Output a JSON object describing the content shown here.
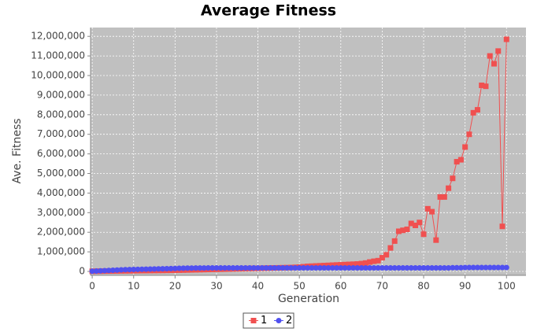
{
  "chart_data": {
    "type": "line",
    "title": "Average Fitness",
    "x_label": "Generation",
    "y_label": "Ave. Fitness",
    "x": [
      0,
      1,
      2,
      3,
      4,
      5,
      6,
      7,
      8,
      9,
      10,
      11,
      12,
      13,
      14,
      15,
      16,
      17,
      18,
      19,
      20,
      21,
      22,
      23,
      24,
      25,
      26,
      27,
      28,
      29,
      30,
      31,
      32,
      33,
      34,
      35,
      36,
      37,
      38,
      39,
      40,
      41,
      42,
      43,
      44,
      45,
      46,
      47,
      48,
      49,
      50,
      51,
      52,
      53,
      54,
      55,
      56,
      57,
      58,
      59,
      60,
      61,
      62,
      63,
      64,
      65,
      66,
      67,
      68,
      69,
      70,
      71,
      72,
      73,
      74,
      75,
      76,
      77,
      78,
      79,
      80,
      81,
      82,
      83,
      84,
      85,
      86,
      87,
      88,
      89,
      90,
      91,
      92,
      93,
      94,
      95,
      96,
      97,
      98,
      99,
      100
    ],
    "series": [
      {
        "name": "1",
        "color": "#f05050",
        "marker": "square",
        "values": [
          10000,
          12000,
          15000,
          18000,
          20000,
          22000,
          25000,
          28000,
          30000,
          32000,
          35000,
          38000,
          40000,
          42000,
          45000,
          48000,
          50000,
          52000,
          55000,
          58000,
          60000,
          65000,
          70000,
          75000,
          80000,
          85000,
          90000,
          95000,
          100000,
          105000,
          110000,
          115000,
          120000,
          125000,
          130000,
          135000,
          140000,
          145000,
          150000,
          155000,
          160000,
          165000,
          170000,
          175000,
          180000,
          185000,
          190000,
          195000,
          200000,
          210000,
          220000,
          240000,
          260000,
          270000,
          280000,
          290000,
          300000,
          310000,
          320000,
          330000,
          340000,
          350000,
          360000,
          370000,
          380000,
          400000,
          430000,
          480000,
          520000,
          550000,
          700000,
          850000,
          1200000,
          1550000,
          2050000,
          2100000,
          2150000,
          2450000,
          2350000,
          2500000,
          1900000,
          3200000,
          3050000,
          1600000,
          3800000,
          3800000,
          4250000,
          4750000,
          5600000,
          5700000,
          6350000,
          7000000,
          8100000,
          8250000,
          9500000,
          9450000,
          11000000,
          10600000,
          11250000,
          2300000,
          11850000
        ]
      },
      {
        "name": "2",
        "color": "#5050f0",
        "marker": "circle",
        "values": [
          10000,
          20000,
          30000,
          40000,
          50000,
          60000,
          70000,
          80000,
          90000,
          95000,
          100000,
          105000,
          110000,
          115000,
          120000,
          125000,
          130000,
          135000,
          140000,
          145000,
          150000,
          160000,
          165000,
          170000,
          170000,
          175000,
          175000,
          175000,
          180000,
          180000,
          180000,
          180000,
          180000,
          180000,
          180000,
          180000,
          180000,
          180000,
          180000,
          180000,
          180000,
          180000,
          180000,
          180000,
          180000,
          180000,
          180000,
          180000,
          180000,
          180000,
          180000,
          180000,
          180000,
          180000,
          180000,
          180000,
          180000,
          180000,
          180000,
          180000,
          180000,
          180000,
          180000,
          180000,
          180000,
          180000,
          180000,
          180000,
          180000,
          180000,
          180000,
          180000,
          180000,
          180000,
          180000,
          180000,
          180000,
          180000,
          180000,
          180000,
          180000,
          180000,
          180000,
          180000,
          180000,
          180000,
          180000,
          190000,
          190000,
          190000,
          200000,
          200000,
          200000,
          200000,
          200000,
          200000,
          200000,
          200000,
          200000,
          200000,
          200000
        ]
      }
    ],
    "xlim": [
      -0.4,
      104.7
    ],
    "ylim": [
      -200000,
      12450000
    ],
    "xticks": [
      0,
      10,
      20,
      30,
      40,
      50,
      60,
      70,
      80,
      90,
      100
    ],
    "yticks": [
      0,
      {
        "value": 1000000,
        "label": "1,000,000"
      },
      {
        "value": 2000000,
        "label": "2,000,000"
      },
      {
        "value": 3000000,
        "label": "3,000,000"
      },
      {
        "value": 4000000,
        "label": "4,000,000"
      },
      {
        "value": 5000000,
        "label": "5,000,000"
      },
      {
        "value": 6000000,
        "label": "6,000,000"
      },
      {
        "value": 7000000,
        "label": "7,000,000"
      },
      {
        "value": 8000000,
        "label": "8,000,000"
      },
      {
        "value": 9000000,
        "label": "9,000,000"
      },
      {
        "value": 10000000,
        "label": "10,000,000"
      },
      {
        "value": 11000000,
        "label": "11,000,000"
      },
      {
        "value": 12000000,
        "label": "12,000,000"
      }
    ],
    "grid": true,
    "legend": "bottom"
  }
}
